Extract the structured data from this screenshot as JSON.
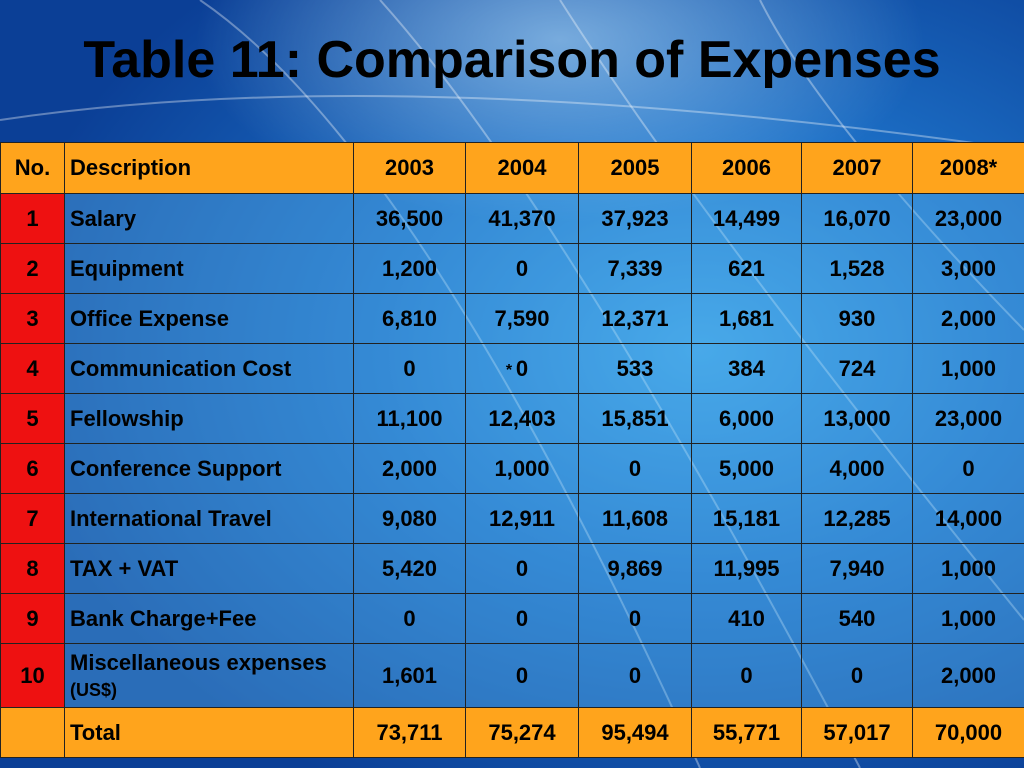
{
  "title": "Table 11: Comparison of Expenses",
  "table": {
    "headers": [
      "No.",
      "Description",
      "2003",
      "2004",
      "2005",
      "2006",
      "2007",
      "2008*"
    ],
    "rows": [
      {
        "no": "1",
        "desc": "Salary",
        "v": [
          "36,500",
          "41,370",
          "37,923",
          "14,499",
          "16,070",
          "23,000"
        ]
      },
      {
        "no": "2",
        "desc": "Equipment",
        "v": [
          "1,200",
          "0",
          "7,339",
          "621",
          "1,528",
          "3,000"
        ]
      },
      {
        "no": "3",
        "desc": "Office Expense",
        "v": [
          "6,810",
          "7,590",
          "12,371",
          "1,681",
          "930",
          "2,000"
        ]
      },
      {
        "no": "4",
        "desc": "Communication Cost",
        "v": [
          "0",
          "0",
          "533",
          "384",
          "724",
          "1,000"
        ]
      },
      {
        "no": "5",
        "desc": "Fellowship",
        "v": [
          "11,100",
          "12,403",
          "15,851",
          "6,000",
          "13,000",
          "23,000"
        ]
      },
      {
        "no": "6",
        "desc": "Conference Support",
        "v": [
          "2,000",
          "1,000",
          "0",
          "5,000",
          "4,000",
          "0"
        ]
      },
      {
        "no": "7",
        "desc": "International Travel",
        "v": [
          "9,080",
          "12,911",
          "11,608",
          "15,181",
          "12,285",
          "14,000"
        ]
      },
      {
        "no": "8",
        "desc": "TAX + VAT",
        "v": [
          "5,420",
          "0",
          "9,869",
          "11,995",
          "7,940",
          "1,000"
        ]
      },
      {
        "no": "9",
        "desc": "Bank Charge+Fee",
        "v": [
          "0",
          "0",
          "0",
          "410",
          "540",
          "1,000"
        ]
      },
      {
        "no": "10",
        "desc": "Miscellaneous expenses",
        "unit": "(US$)",
        "v": [
          "1,601",
          "0",
          "0",
          "0",
          "0",
          "2,000"
        ]
      }
    ],
    "total": {
      "no": "",
      "desc": "Total",
      "v": [
        "73,711",
        "75,274",
        "95,494",
        "55,771",
        "57,017",
        "70,000"
      ]
    }
  }
}
